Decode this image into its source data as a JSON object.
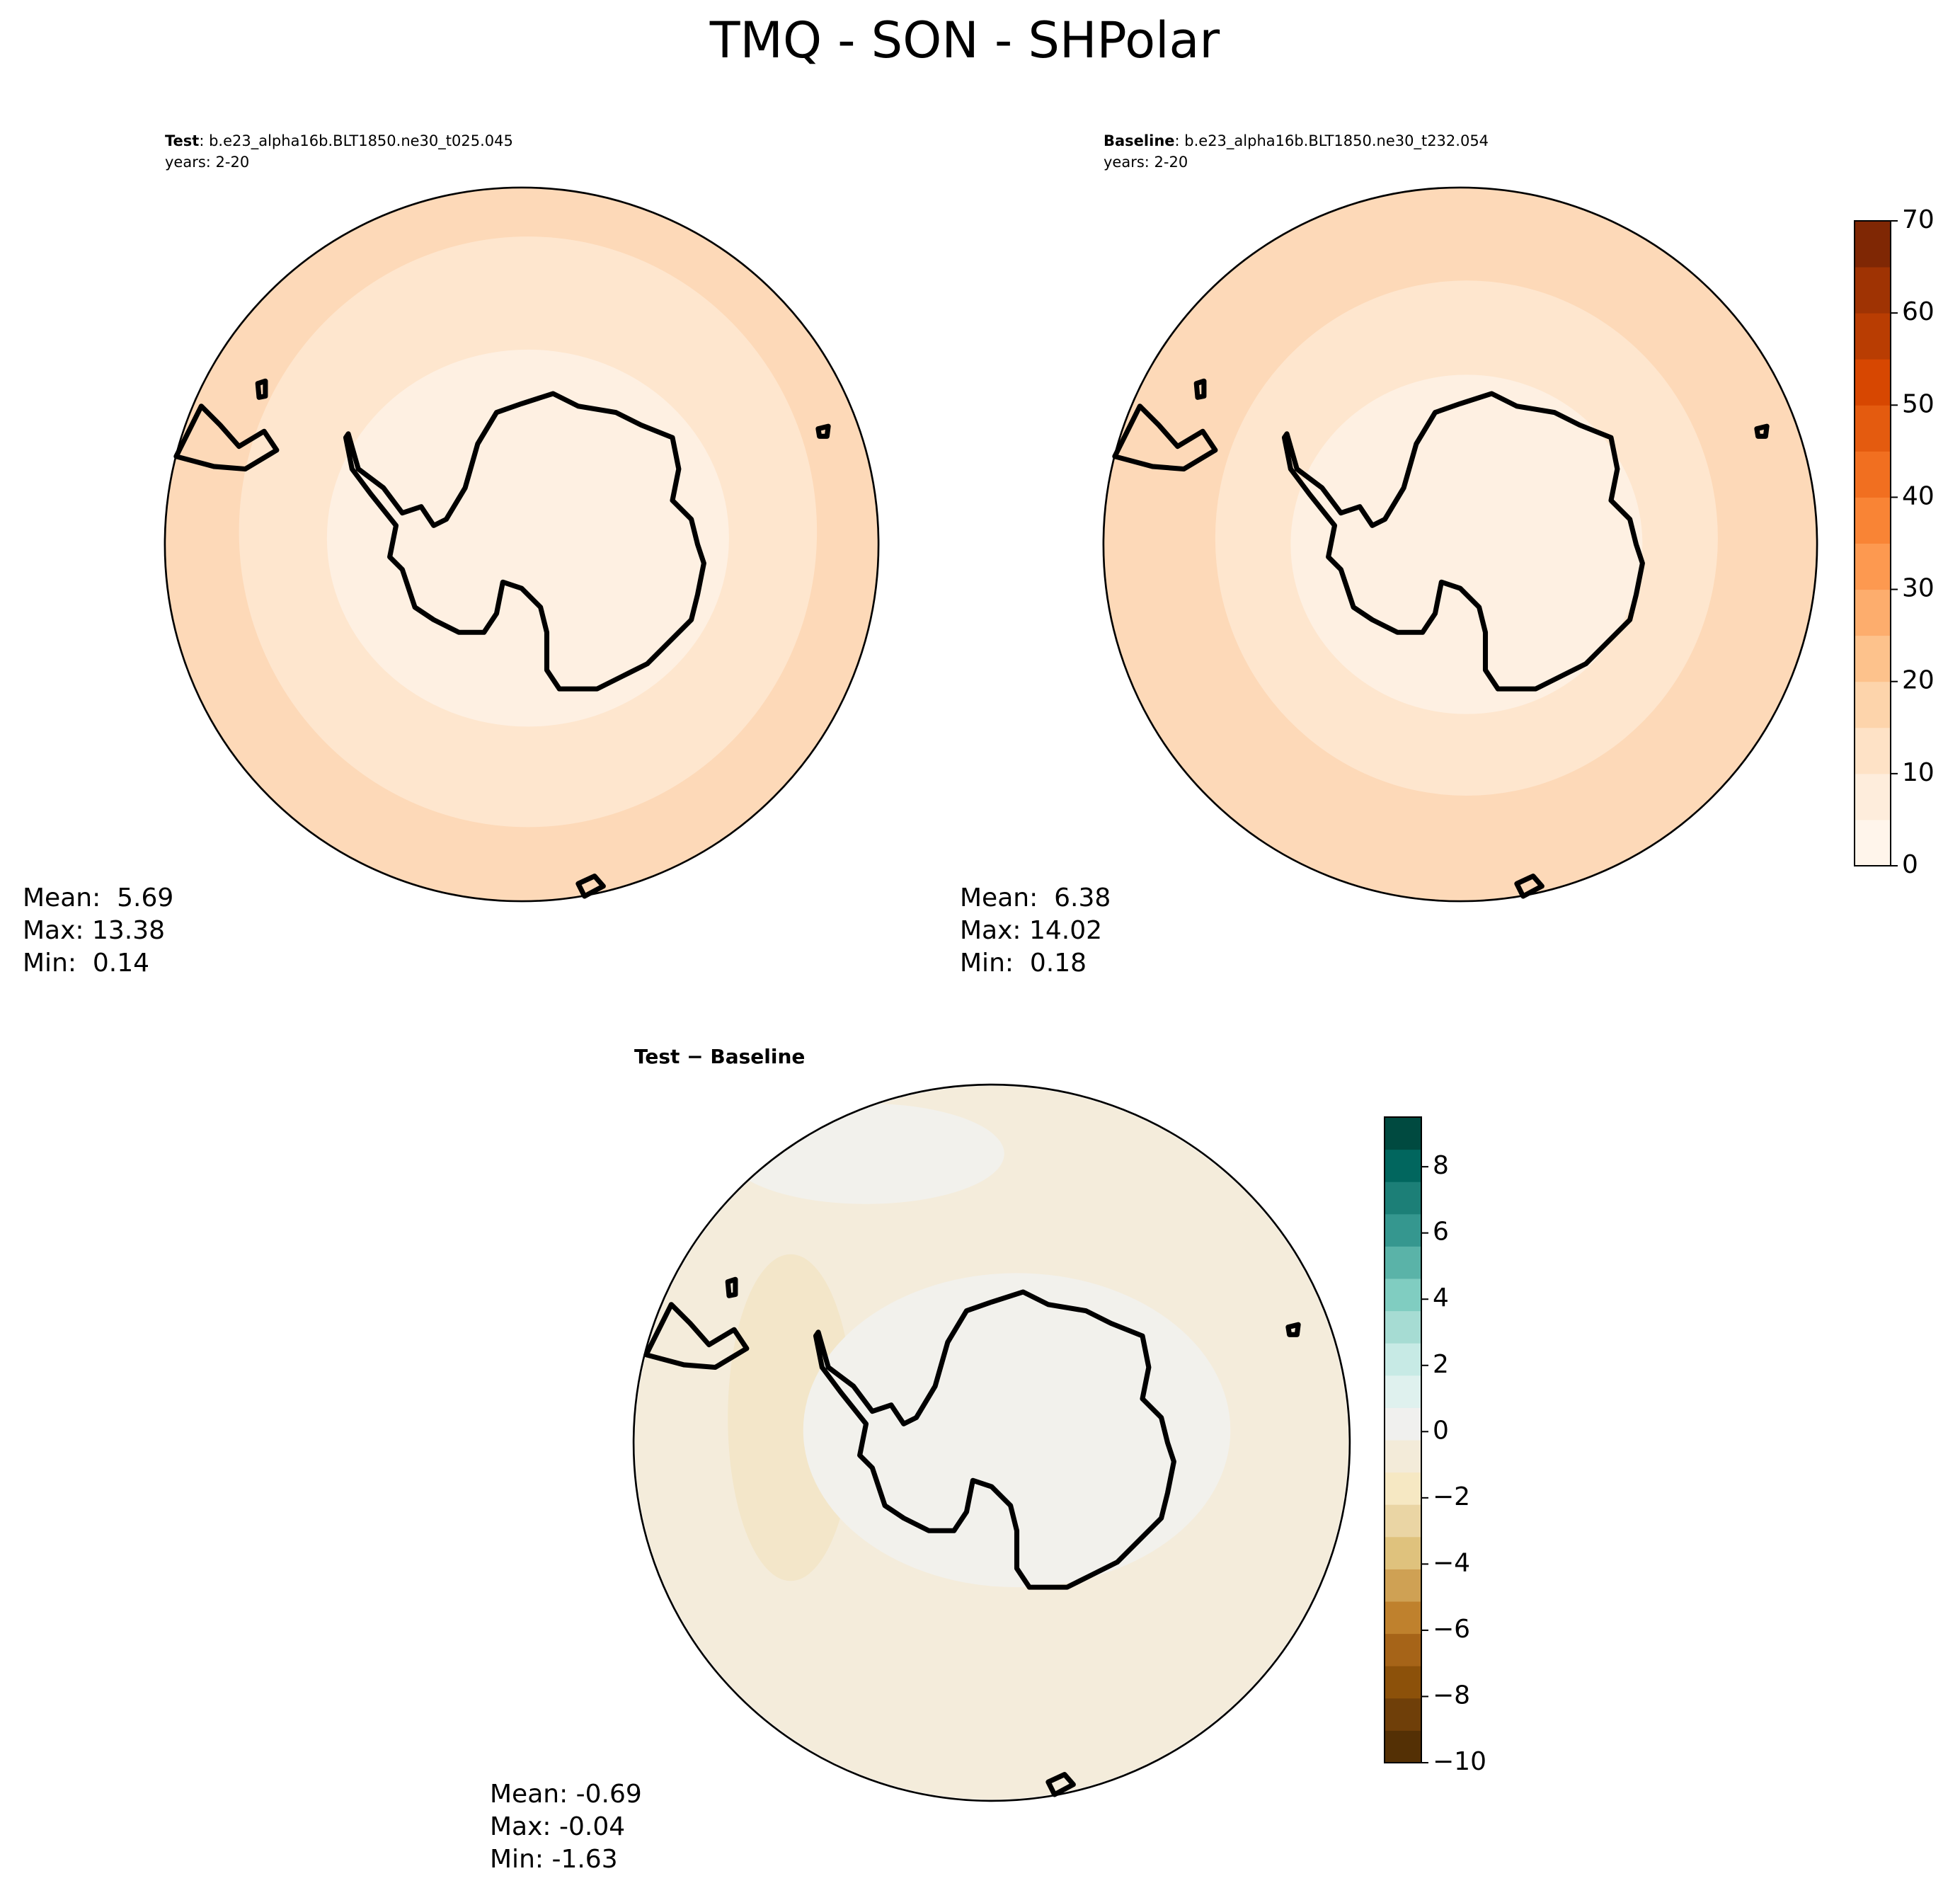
{
  "title": "TMQ - SON - SHPolar",
  "panels": [
    {
      "name": "Test",
      "case": ": b.e23_alpha16b.BLT1850.ne30_t025.045",
      "years": "years: 2-20",
      "stats": [
        "Mean:  5.69",
        "Max: 13.38",
        "Min:  0.14"
      ]
    },
    {
      "name": "Baseline",
      "case": ": b.e23_alpha16b.BLT1850.ne30_t232.054",
      "years": "years: 2-20",
      "stats": [
        "Mean:  6.38",
        "Max: 14.02",
        "Min:  0.18"
      ]
    },
    {
      "title": "Test − Baseline",
      "stats": [
        "Mean: -0.69",
        "Max: -0.04",
        "Min: -1.63"
      ]
    }
  ],
  "colorbars": [
    {
      "lim": [
        0,
        70
      ],
      "ticks": [
        0,
        10,
        20,
        30,
        40,
        50,
        60,
        70
      ],
      "colors": [
        "#fff5eb",
        "#feeddc",
        "#fee2c6",
        "#fdd4ab",
        "#fdc28c",
        "#fdad6d",
        "#fd9950",
        "#f98435",
        "#f16f20",
        "#e45b0f",
        "#d74701",
        "#b93d02",
        "#9f3303",
        "#7f2704"
      ]
    },
    {
      "lim": [
        -10,
        9.5
      ],
      "ticks": [
        {
          "value": -10,
          "label": "−10"
        },
        {
          "value": -8,
          "label": "−8"
        },
        {
          "value": -6,
          "label": "−6"
        },
        {
          "value": -4,
          "label": "−4"
        },
        {
          "value": -2,
          "label": "−2"
        },
        0,
        2,
        4,
        6,
        8
      ],
      "colors": [
        "#543005",
        "#6f3f09",
        "#8c510a",
        "#a66418",
        "#bf812d",
        "#cfa154",
        "#dfc27d",
        "#ead5a4",
        "#f6e8c3",
        "#f3ebd9",
        "#f0f0ee",
        "#dff1ee",
        "#c7eae5",
        "#a6dcd3",
        "#80cdc1",
        "#5ab3a8",
        "#35978f",
        "#1c7f77",
        "#01665e",
        "#004a40"
      ]
    }
  ]
}
